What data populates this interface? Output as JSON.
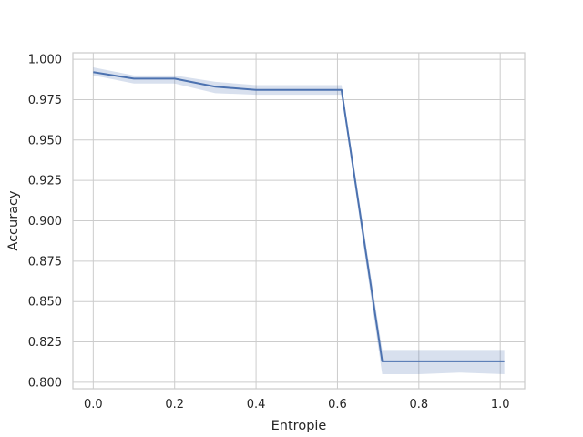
{
  "chart_data": {
    "type": "line",
    "title": "",
    "xlabel": "Entropie",
    "ylabel": "Accuracy",
    "xlim": [
      -0.05,
      1.06
    ],
    "ylim": [
      0.796,
      1.004
    ],
    "x_ticks": [
      0.0,
      0.2,
      0.4,
      0.6,
      0.8,
      1.0
    ],
    "x_tick_labels": [
      "0.0",
      "0.2",
      "0.4",
      "0.6",
      "0.8",
      "1.0"
    ],
    "y_ticks": [
      0.8,
      0.825,
      0.85,
      0.875,
      0.9,
      0.925,
      0.95,
      0.975,
      1.0
    ],
    "y_tick_labels": [
      "0.800",
      "0.825",
      "0.850",
      "0.875",
      "0.900",
      "0.925",
      "0.950",
      "0.975",
      "1.000"
    ],
    "grid": true,
    "series": [
      {
        "color": "#4c72b0",
        "x": [
          0.0,
          0.1,
          0.2,
          0.3,
          0.4,
          0.5,
          0.6,
          0.61,
          0.71,
          0.8,
          0.9,
          1.01
        ],
        "y": [
          0.992,
          0.988,
          0.988,
          0.983,
          0.981,
          0.981,
          0.981,
          0.981,
          0.813,
          0.813,
          0.813,
          0.813
        ],
        "ci_lower": [
          0.99,
          0.985,
          0.985,
          0.979,
          0.978,
          0.978,
          0.978,
          0.978,
          0.805,
          0.805,
          0.806,
          0.805
        ],
        "ci_upper": [
          0.995,
          0.99,
          0.99,
          0.986,
          0.984,
          0.984,
          0.984,
          0.984,
          0.82,
          0.82,
          0.82,
          0.82
        ]
      }
    ]
  }
}
